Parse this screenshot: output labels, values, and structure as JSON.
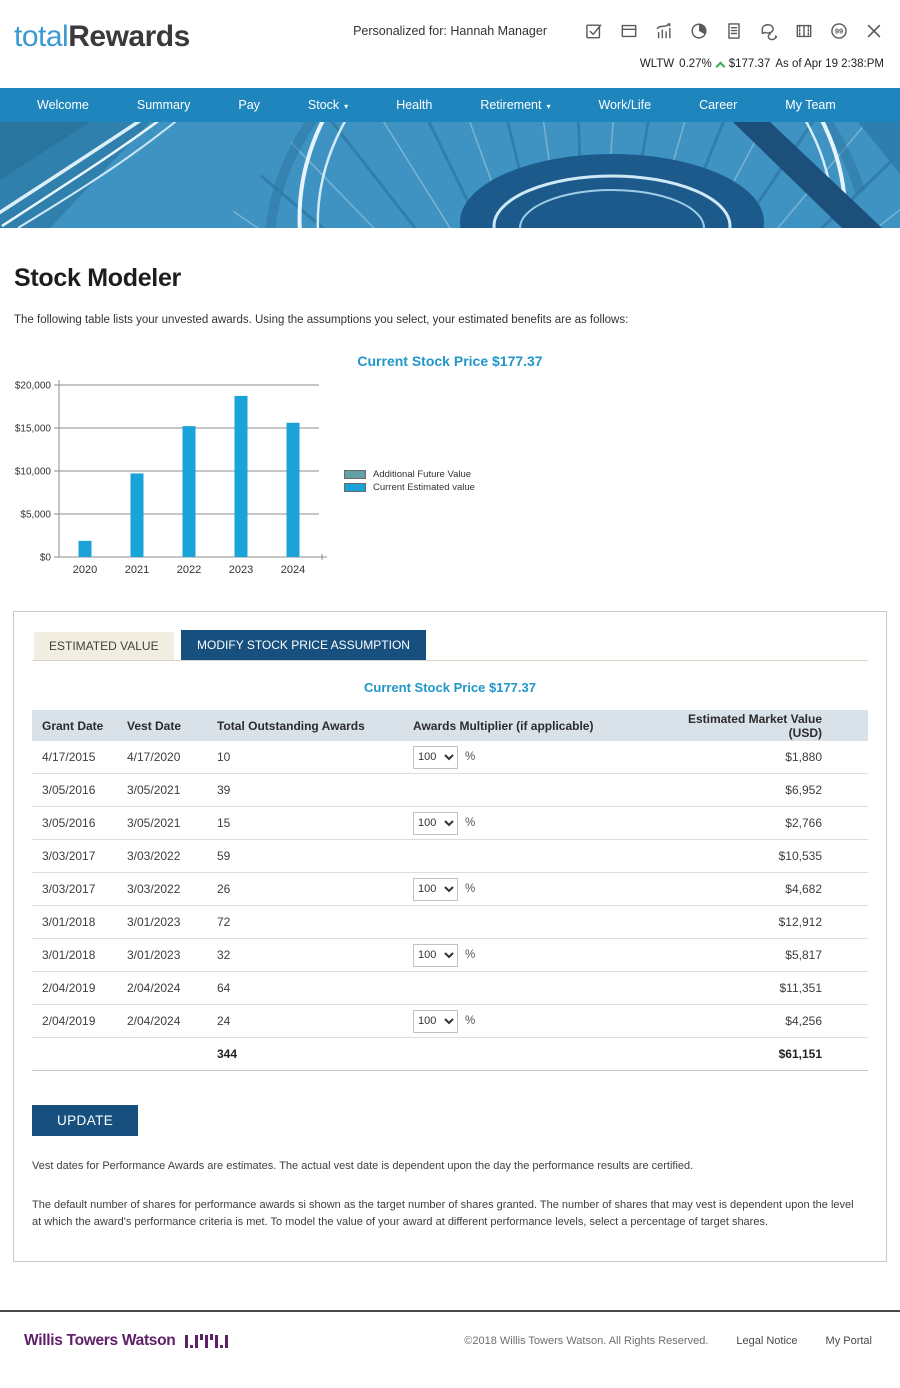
{
  "header": {
    "logo": {
      "total": "total",
      "rewards": "Rewards"
    },
    "personalized_label": "Personalized for:",
    "personalized_name": "Hannah Manager",
    "icons": [
      "check-square-icon",
      "archive-box-icon",
      "growth-chart-icon",
      "pie-chart-icon",
      "document-icon",
      "chat-icon",
      "film-strip-icon",
      "quote-icon",
      "close-icon"
    ]
  },
  "ticker": {
    "symbol": "WLTW",
    "change": "0.27%",
    "direction": "up",
    "price": "$177.37",
    "as_of": "As of Apr 19 2:38:PM",
    "up_color": "#3fa84d"
  },
  "nav": {
    "background": "#1e86bd",
    "items": [
      {
        "label": "Welcome",
        "dropdown": false
      },
      {
        "label": "Summary",
        "dropdown": false
      },
      {
        "label": "Pay",
        "dropdown": false
      },
      {
        "label": "Stock",
        "dropdown": true
      },
      {
        "label": "Health",
        "dropdown": false
      },
      {
        "label": "Retirement",
        "dropdown": true
      },
      {
        "label": "Work/Life",
        "dropdown": false
      },
      {
        "label": "Career",
        "dropdown": false
      },
      {
        "label": "My Team",
        "dropdown": false
      }
    ]
  },
  "page": {
    "title": "Stock Modeler",
    "intro": "The following table lists your unvested awards. Using the assumptions you select, your estimated benefits are as follows:"
  },
  "chart_data": {
    "type": "bar",
    "title": "Current Stock Price $177.37",
    "categories": [
      "2020",
      "2021",
      "2022",
      "2023",
      "2024"
    ],
    "series": [
      {
        "name": "Additional Future Value",
        "color": "#639fa4",
        "values": [
          0,
          0,
          0,
          0,
          0
        ]
      },
      {
        "name": "Current Estimated value",
        "color": "#1aa3d8",
        "values": [
          1880,
          9718,
          15217,
          18729,
          15607
        ]
      }
    ],
    "ylabel_ticks": [
      "$0",
      "$5,000",
      "$10,000",
      "$15,000",
      "$20,000"
    ],
    "ytick_values": [
      0,
      5000,
      10000,
      15000,
      20000
    ],
    "ylim": [
      0,
      20000
    ],
    "grid": true,
    "legend_position": "right"
  },
  "tabs": [
    {
      "label": "ESTIMATED VALUE",
      "active": false
    },
    {
      "label": "MODIFY STOCK PRICE ASSUMPTION",
      "active": true
    }
  ],
  "panel": {
    "subtitle": "Current Stock Price $177.37",
    "update_label": "UPDATE"
  },
  "table": {
    "columns": [
      "Grant Date",
      "Vest Date",
      "Total Outstanding Awards",
      "Awards Multiplier (if applicable)",
      "Estimated Market Value (USD)"
    ],
    "percent_suffix": "%",
    "rows": [
      {
        "grant_date": "4/17/2015",
        "vest_date": "4/17/2020",
        "awards": "10",
        "multiplier": "100",
        "value": "$1,880"
      },
      {
        "grant_date": "3/05/2016",
        "vest_date": "3/05/2021",
        "awards": "39",
        "multiplier": null,
        "value": "$6,952"
      },
      {
        "grant_date": "3/05/2016",
        "vest_date": "3/05/2021",
        "awards": "15",
        "multiplier": "100",
        "value": "$2,766"
      },
      {
        "grant_date": "3/03/2017",
        "vest_date": "3/03/2022",
        "awards": "59",
        "multiplier": null,
        "value": "$10,535"
      },
      {
        "grant_date": "3/03/2017",
        "vest_date": "3/03/2022",
        "awards": "26",
        "multiplier": "100",
        "value": "$4,682"
      },
      {
        "grant_date": "3/01/2018",
        "vest_date": "3/01/2023",
        "awards": "72",
        "multiplier": null,
        "value": "$12,912"
      },
      {
        "grant_date": "3/01/2018",
        "vest_date": "3/01/2023",
        "awards": "32",
        "multiplier": "100",
        "value": "$5,817"
      },
      {
        "grant_date": "2/04/2019",
        "vest_date": "2/04/2024",
        "awards": "64",
        "multiplier": null,
        "value": "$11,351"
      },
      {
        "grant_date": "2/04/2019",
        "vest_date": "2/04/2024",
        "awards": "24",
        "multiplier": "100",
        "value": "$4,256"
      }
    ],
    "totals": {
      "awards": "344",
      "value": "$61,151"
    }
  },
  "footnotes": [
    "Vest dates for Performance Awards are estimates. The actual vest date is dependent upon the day the performance results are certified.",
    "The default number of shares for performance awards si shown as the target number of shares granted. The number of shares that may vest is dependent upon the level at which the award's performance criteria is met. To model the value of your award at different performance levels, select a percentage of target shares."
  ],
  "footer": {
    "brand": "Willis Towers Watson",
    "copyright": "©2018 Willis Towers Watson. All Rights Reserved.",
    "links": [
      {
        "label": "Legal Notice"
      },
      {
        "label": "My Portal"
      }
    ]
  },
  "colors": {
    "nav_blue": "#1e86bd",
    "accent_blue": "#2196c9",
    "bar_blue": "#1aa3d8",
    "legend_teal": "#639fa4",
    "navy": "#17507f",
    "tab_beige": "#f1eee1",
    "table_header_bg": "#d9e1e9",
    "brand_purple": "#5e2167"
  }
}
